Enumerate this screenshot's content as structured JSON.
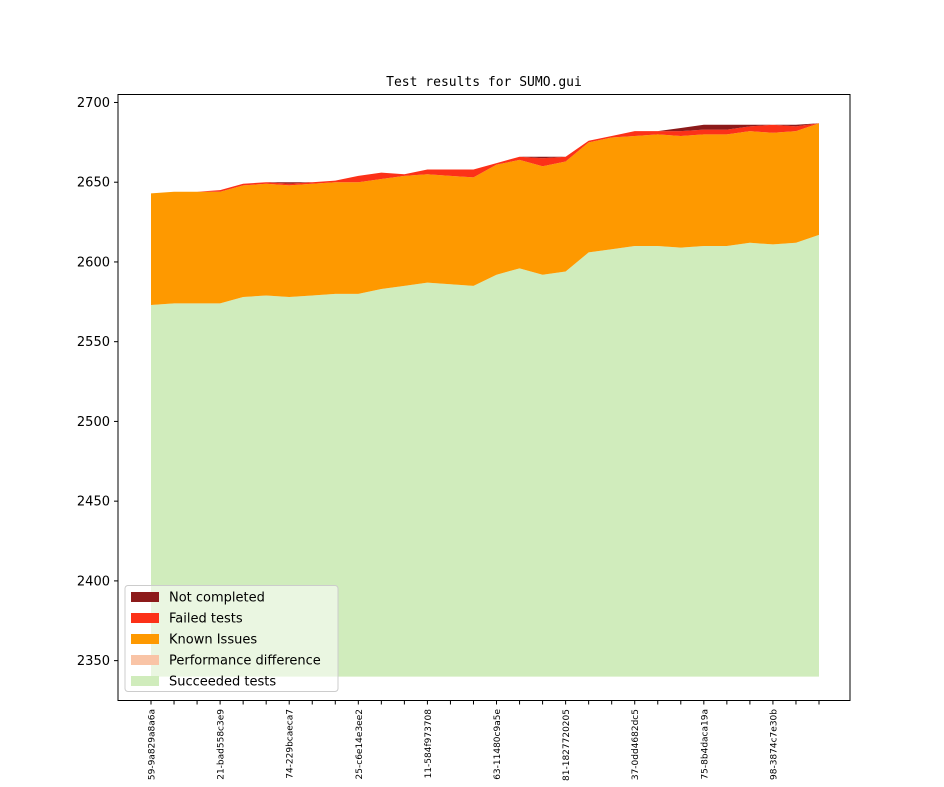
{
  "chart_data": {
    "type": "area",
    "title": "Test results for SUMO.gui",
    "xlabel": "",
    "ylabel": "",
    "ylim": [
      2325,
      2705
    ],
    "yticks": [
      2350,
      2400,
      2450,
      2500,
      2550,
      2600,
      2650,
      2700
    ],
    "baseline": 2340,
    "x_labels_visible": [
      "59-9a829a8a6a",
      "21-bad558c3e9",
      "74-229bcaeca7",
      "25-c6e14e3ee2",
      "11-584f973708",
      "63-11480c9a5e",
      "81-1827720205",
      "37-0dd4682dc5",
      "75-8b4daca19a",
      "98-3874c7e30b"
    ],
    "series": [
      {
        "name": "Succeeded tests",
        "color": "#d0ecbc",
        "values": [
          2573,
          2574,
          2574,
          2574,
          2578,
          2579,
          2578,
          2579,
          2580,
          2580,
          2583,
          2585,
          2587,
          2586,
          2585,
          2592,
          2596,
          2592,
          2594,
          2606,
          2608,
          2610,
          2610,
          2609,
          2610,
          2610,
          2612,
          2611,
          2612,
          2617
        ]
      },
      {
        "name": "Performance difference",
        "color": "#f9c4a6",
        "values": [
          0,
          0,
          0,
          0,
          0,
          0,
          0,
          0,
          0,
          0,
          0,
          0,
          0,
          0,
          0,
          0,
          0,
          0,
          0,
          0,
          0,
          0,
          0,
          0,
          0,
          0,
          0,
          0,
          0,
          0
        ]
      },
      {
        "name": "Known Issues",
        "color": "#fe9900",
        "values": [
          70,
          70,
          70,
          70,
          70,
          70,
          70,
          70,
          70,
          70,
          69,
          69,
          68,
          68,
          68,
          69,
          68,
          68,
          69,
          69,
          70,
          69,
          70,
          70,
          70,
          70,
          70,
          70,
          70,
          70
        ]
      },
      {
        "name": "Failed tests",
        "color": "#fc3118",
        "values": [
          0,
          0,
          0,
          1,
          1,
          1,
          1,
          1,
          1,
          4,
          4,
          1,
          3,
          4,
          5,
          1,
          2,
          5,
          3,
          1,
          1,
          3,
          2,
          3,
          3,
          3,
          3,
          5,
          3,
          0
        ]
      },
      {
        "name": "Not completed",
        "color": "#8c1a1a",
        "values": [
          0,
          0,
          0,
          0,
          0,
          0,
          1,
          0,
          0,
          0,
          0,
          0,
          0,
          0,
          0,
          0,
          0,
          1,
          0,
          0,
          0,
          0,
          0,
          2,
          3,
          3,
          1,
          0,
          1,
          0
        ]
      }
    ],
    "legend": {
      "placement": "lower-left",
      "entries": [
        "Not completed",
        "Failed tests",
        "Known Issues",
        "Performance difference",
        "Succeeded tests"
      ]
    }
  }
}
